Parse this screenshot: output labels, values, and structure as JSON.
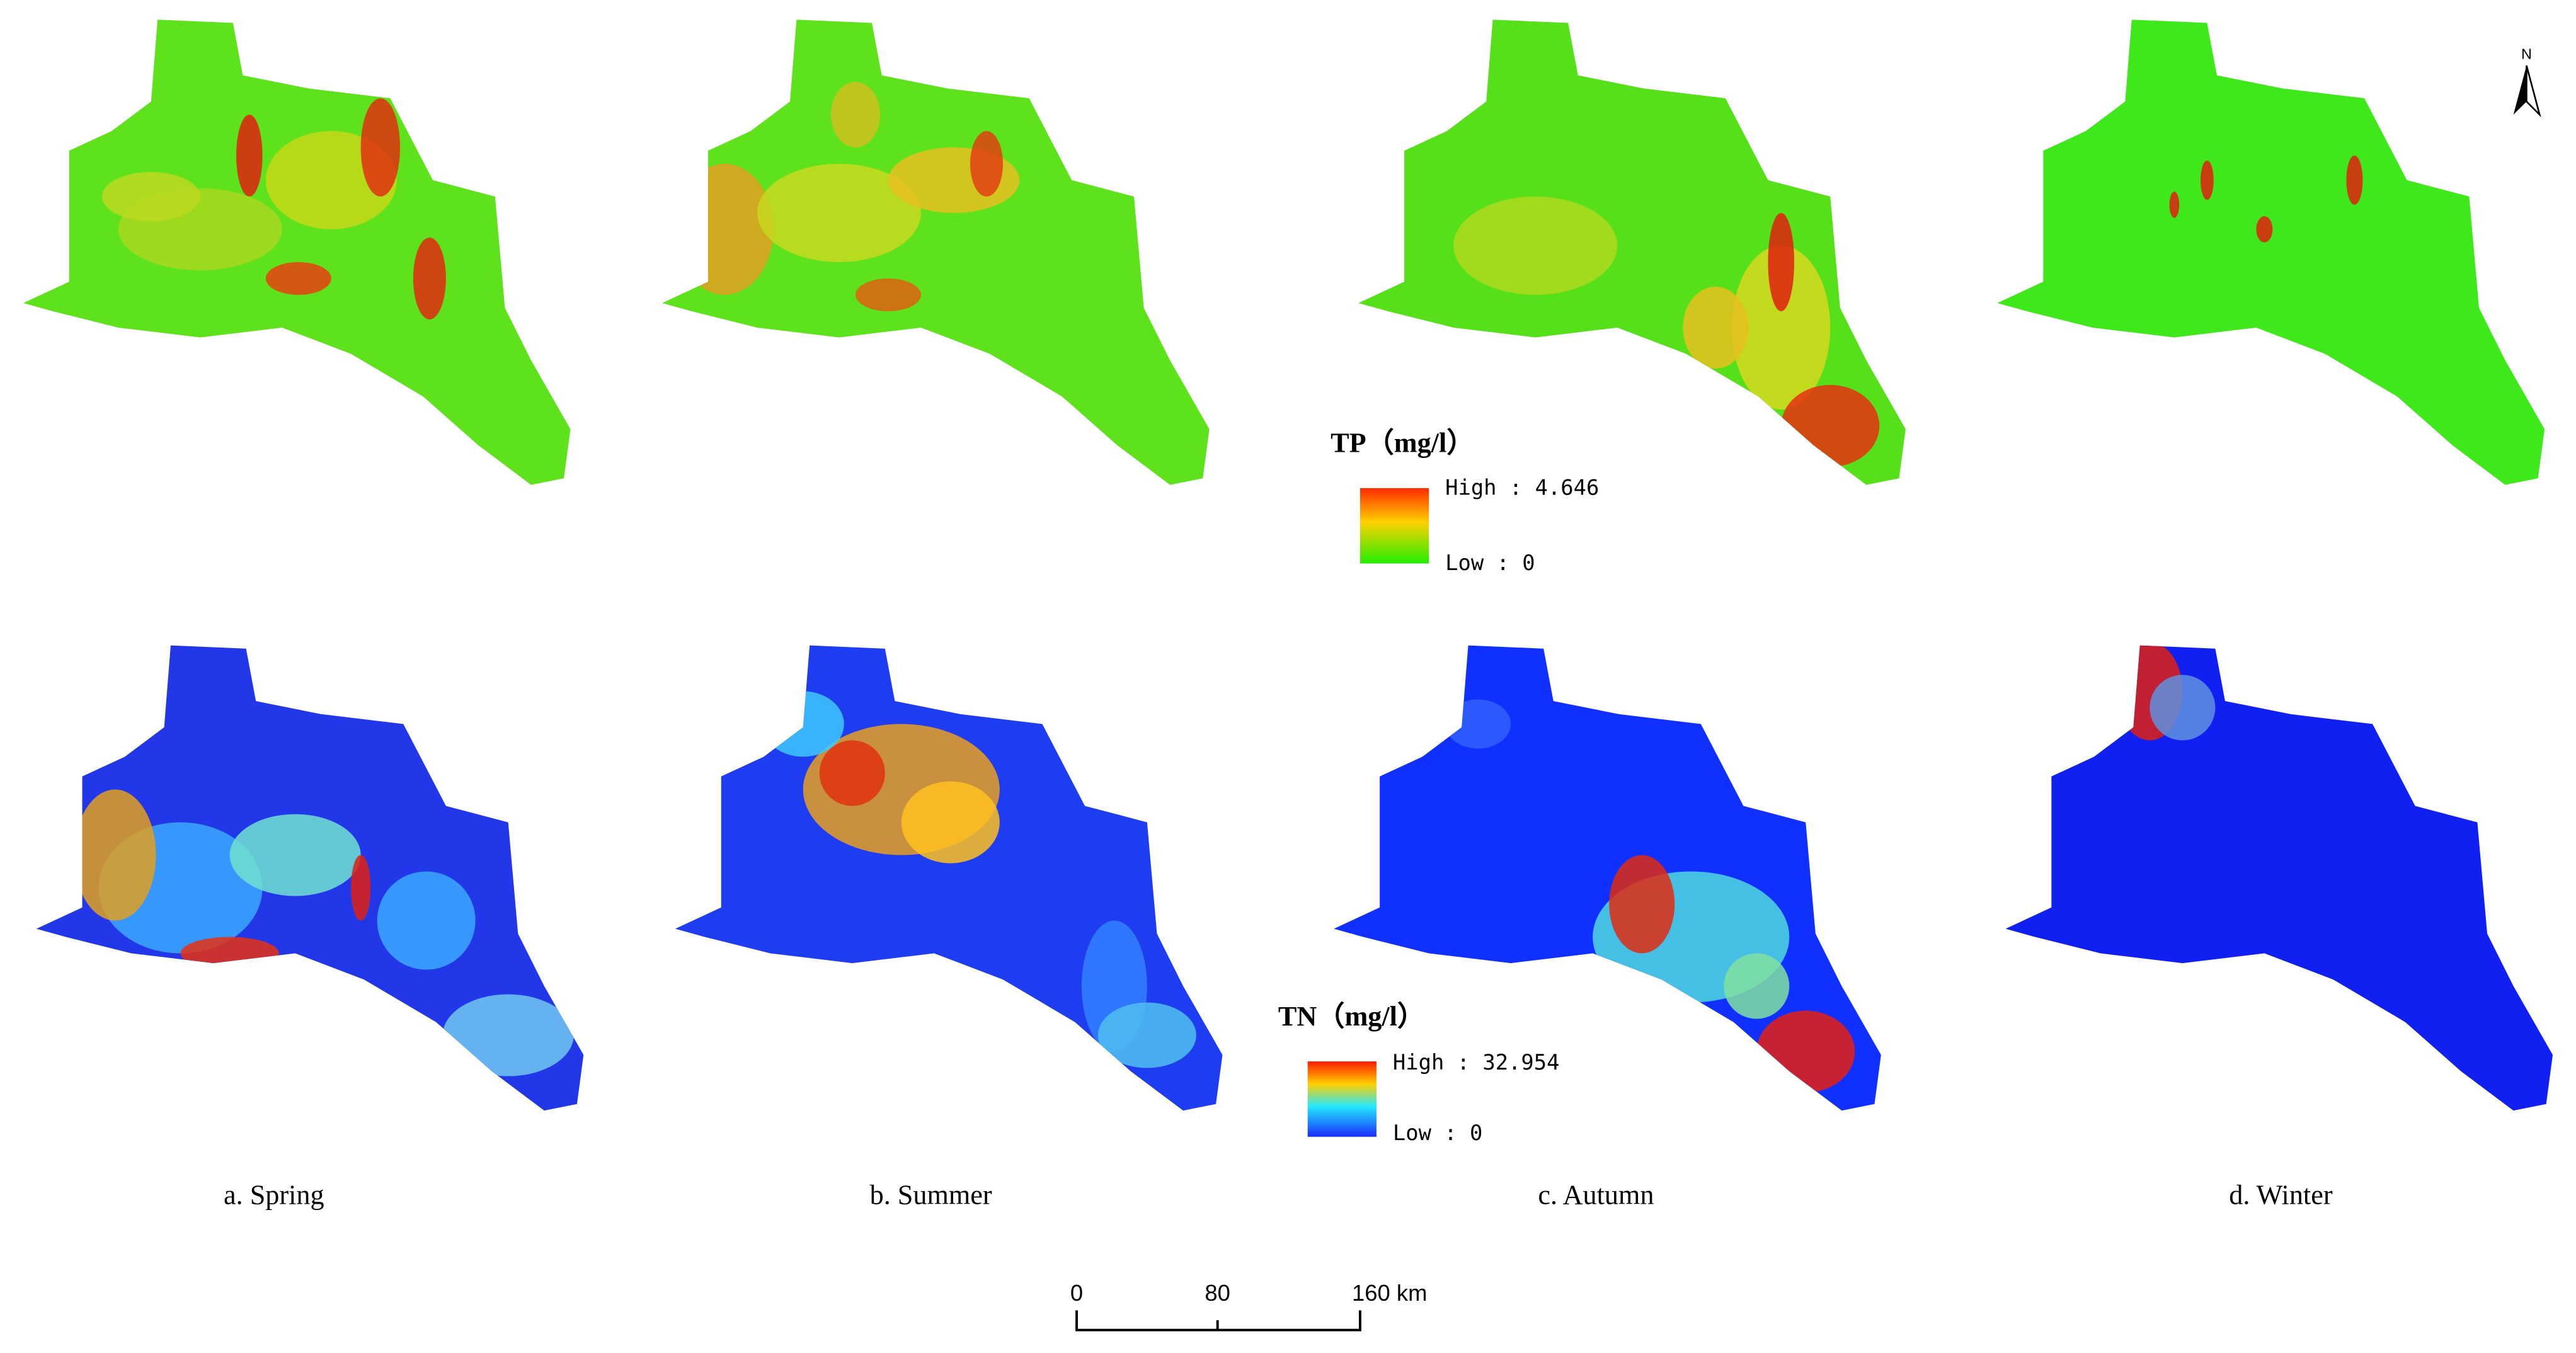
{
  "legends": [
    {
      "title": "TP（mg/l）",
      "high": "High : 4.646",
      "low": "Low : 0"
    },
    {
      "title": "TN（mg/l）",
      "high": "High : 32.954",
      "low": "Low : 0"
    }
  ],
  "captions": [
    "a. Spring",
    "b. Summer",
    "c. Autumn",
    "d. Winter"
  ],
  "scale_bar": {
    "labels": [
      "0",
      "80",
      "160 km"
    ]
  },
  "north_arrow": "N"
}
